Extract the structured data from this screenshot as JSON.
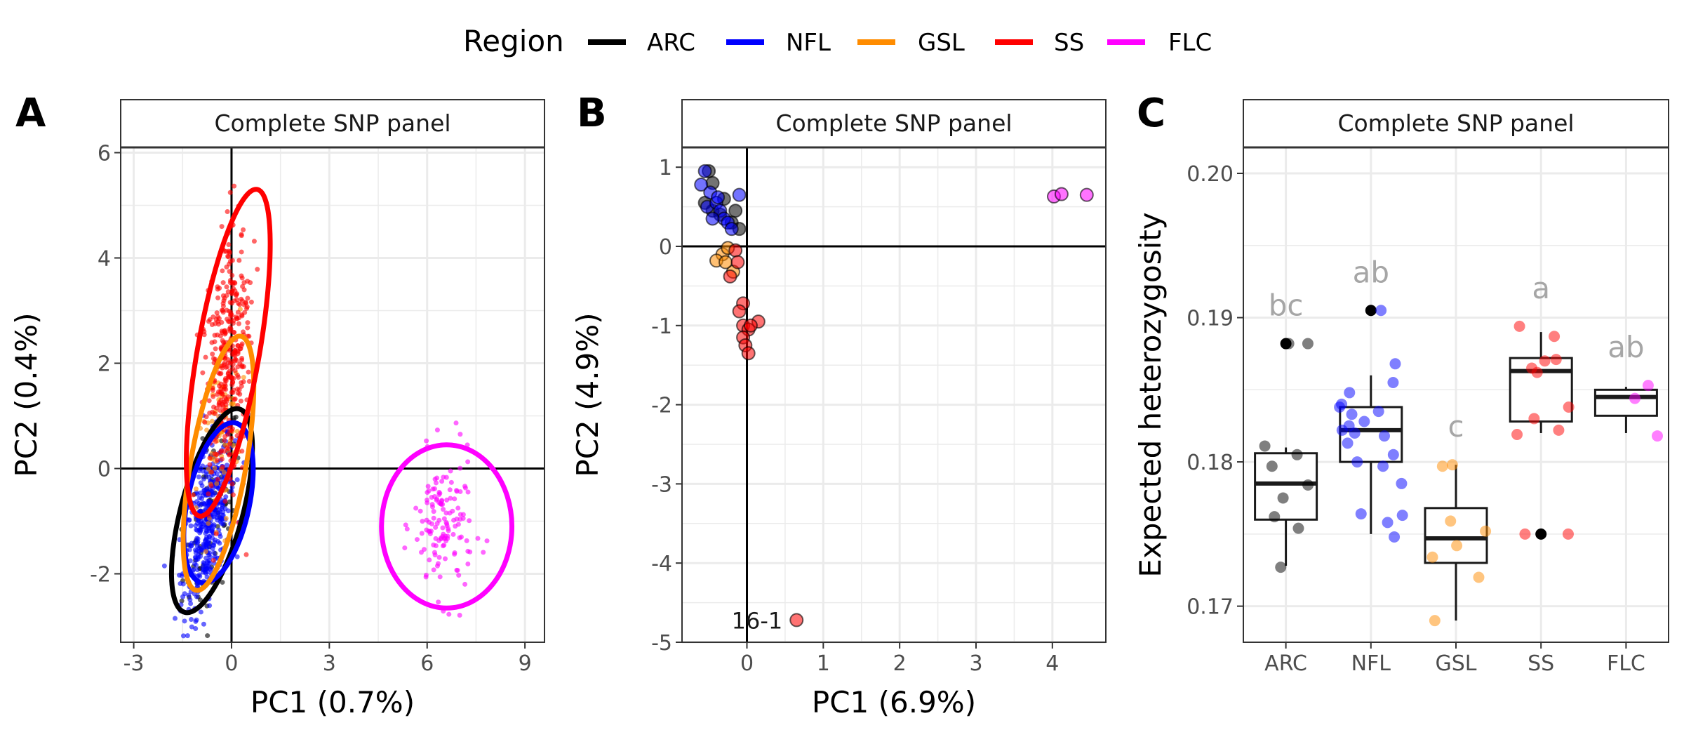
{
  "legend": {
    "title": "Region",
    "items": [
      {
        "label": "ARC",
        "color": "#000000"
      },
      {
        "label": "NFL",
        "color": "#0000ff"
      },
      {
        "label": "GSL",
        "color": "#ff8c00"
      },
      {
        "label": "SS",
        "color": "#ff0000"
      },
      {
        "label": "FLC",
        "color": "#ff00ff"
      }
    ]
  },
  "chart_data": [
    {
      "panel": "A",
      "type": "scatter",
      "strip": "Complete SNP panel",
      "xlabel": "PC1 (0.7%)",
      "ylabel": "PC2 (0.4%)",
      "xlim": [
        -3.4,
        9.6
      ],
      "ylim": [
        -3.3,
        6.1
      ],
      "xticks": [
        -3,
        0,
        3,
        6,
        9
      ],
      "yticks": [
        -2,
        0,
        2,
        4,
        6
      ],
      "grid": true,
      "reference_lines": {
        "x": 0,
        "y": 0
      },
      "clusters": [
        {
          "group": "ARC",
          "color": "#000000",
          "center": [
            -0.6,
            -1.0
          ],
          "spread": [
            0.75,
            0.85
          ],
          "n": 90
        },
        {
          "group": "NFL",
          "color": "#0000ff",
          "center": [
            -0.7,
            -1.0
          ],
          "spread": [
            0.65,
            0.75
          ],
          "n": 450
        },
        {
          "group": "GSL",
          "color": "#ff8c00",
          "center": [
            -0.4,
            0.4
          ],
          "spread": [
            0.55,
            1.0
          ],
          "n": 80
        },
        {
          "group": "SS",
          "color": "#ff0000",
          "center": [
            -0.1,
            2.1
          ],
          "spread": [
            0.55,
            1.3
          ],
          "n": 380
        },
        {
          "group": "FLC",
          "color": "#ff00ff",
          "center": [
            6.5,
            -1.1
          ],
          "spread": [
            0.75,
            0.75
          ],
          "n": 140
        }
      ],
      "ellipses": [
        {
          "group": "ARC",
          "color": "#000000",
          "center": [
            -0.6,
            -0.8
          ],
          "rx": 0.95,
          "ry": 2.0,
          "angle_deg": 15
        },
        {
          "group": "NFL",
          "color": "#0000ff",
          "center": [
            -0.4,
            -0.65
          ],
          "rx": 0.95,
          "ry": 1.55,
          "angle_deg": 12
        },
        {
          "group": "GSL",
          "color": "#ff8c00",
          "center": [
            -0.4,
            0.1
          ],
          "rx": 0.85,
          "ry": 2.45,
          "angle_deg": 10
        },
        {
          "group": "SS",
          "color": "#ff0000",
          "center": [
            -0.1,
            2.2
          ],
          "rx": 0.95,
          "ry": 3.15,
          "angle_deg": 10
        },
        {
          "group": "FLC",
          "color": "#ff00ff",
          "center": [
            6.6,
            -1.1
          ],
          "rx": 2.0,
          "ry": 1.55,
          "angle_deg": 0
        }
      ]
    },
    {
      "panel": "B",
      "type": "scatter",
      "strip": "Complete SNP panel",
      "xlabel": "PC1 (6.9%)",
      "ylabel": "PC2 (4.9%)",
      "xlim": [
        -0.85,
        4.7
      ],
      "ylim": [
        -5.0,
        1.25
      ],
      "xticks": [
        0,
        1,
        2,
        3,
        4
      ],
      "yticks": [
        -5,
        -4,
        -3,
        -2,
        -1,
        0,
        1
      ],
      "grid": true,
      "reference_lines": {
        "x": 0,
        "y": 0
      },
      "points": [
        {
          "x": -0.5,
          "y": 0.95,
          "g": "ARC"
        },
        {
          "x": -0.45,
          "y": 0.8,
          "g": "ARC"
        },
        {
          "x": -0.55,
          "y": 0.55,
          "g": "ARC"
        },
        {
          "x": -0.3,
          "y": 0.6,
          "g": "ARC"
        },
        {
          "x": -0.35,
          "y": 0.4,
          "g": "ARC"
        },
        {
          "x": -0.15,
          "y": 0.45,
          "g": "ARC"
        },
        {
          "x": -0.1,
          "y": 0.22,
          "g": "ARC"
        },
        {
          "x": -0.45,
          "y": 0.45,
          "g": "ARC"
        },
        {
          "x": -0.2,
          "y": 0.3,
          "g": "ARC"
        },
        {
          "x": -0.55,
          "y": 0.95,
          "g": "NFL"
        },
        {
          "x": -0.6,
          "y": 0.78,
          "g": "NFL"
        },
        {
          "x": -0.48,
          "y": 0.68,
          "g": "NFL"
        },
        {
          "x": -0.52,
          "y": 0.5,
          "g": "NFL"
        },
        {
          "x": -0.4,
          "y": 0.55,
          "g": "NFL"
        },
        {
          "x": -0.35,
          "y": 0.45,
          "g": "NFL"
        },
        {
          "x": -0.3,
          "y": 0.35,
          "g": "NFL"
        },
        {
          "x": -0.25,
          "y": 0.3,
          "g": "NFL"
        },
        {
          "x": -0.2,
          "y": 0.22,
          "g": "NFL"
        },
        {
          "x": -0.45,
          "y": 0.35,
          "g": "NFL"
        },
        {
          "x": -0.1,
          "y": 0.65,
          "g": "NFL"
        },
        {
          "x": -0.38,
          "y": 0.62,
          "g": "NFL"
        },
        {
          "x": -0.32,
          "y": -0.1,
          "g": "GSL"
        },
        {
          "x": -0.4,
          "y": -0.18,
          "g": "GSL"
        },
        {
          "x": -0.25,
          "y": -0.02,
          "g": "GSL"
        },
        {
          "x": -0.18,
          "y": -0.32,
          "g": "GSL"
        },
        {
          "x": -0.28,
          "y": -0.2,
          "g": "GSL"
        },
        {
          "x": -0.15,
          "y": -0.05,
          "g": "SS"
        },
        {
          "x": -0.12,
          "y": -0.2,
          "g": "SS"
        },
        {
          "x": -0.22,
          "y": -0.38,
          "g": "SS"
        },
        {
          "x": -0.05,
          "y": -0.72,
          "g": "SS"
        },
        {
          "x": -0.1,
          "y": -0.82,
          "g": "SS"
        },
        {
          "x": -0.05,
          "y": -1.0,
          "g": "SS"
        },
        {
          "x": 0.02,
          "y": -1.05,
          "g": "SS"
        },
        {
          "x": 0.15,
          "y": -0.95,
          "g": "SS"
        },
        {
          "x": 0.05,
          "y": -1.0,
          "g": "SS"
        },
        {
          "x": -0.05,
          "y": -1.15,
          "g": "SS"
        },
        {
          "x": -0.02,
          "y": -1.25,
          "g": "SS"
        },
        {
          "x": 0.02,
          "y": -1.35,
          "g": "SS"
        },
        {
          "x": 0.65,
          "y": -4.72,
          "g": "SS"
        },
        {
          "x": 4.02,
          "y": 0.63,
          "g": "FLC"
        },
        {
          "x": 4.12,
          "y": 0.66,
          "g": "FLC"
        },
        {
          "x": 4.45,
          "y": 0.65,
          "g": "FLC"
        }
      ],
      "annotations": [
        {
          "text": "16-1",
          "x": 0.65,
          "y": -4.72
        }
      ]
    },
    {
      "panel": "C",
      "type": "box",
      "strip": "Complete SNP panel",
      "xlabel": "",
      "ylabel": "Expected heterozygosity",
      "ylim": [
        0.1675,
        0.2018
      ],
      "yticks": [
        0.17,
        0.18,
        0.19,
        0.2
      ],
      "categories": [
        "ARC",
        "NFL",
        "GSL",
        "SS",
        "FLC"
      ],
      "grid": true,
      "boxes": [
        {
          "group": "ARC",
          "color": "#000000",
          "min": 0.1728,
          "q1": 0.176,
          "median": 0.1785,
          "q3": 0.1806,
          "max": 0.181,
          "letter": "bc",
          "points": [
            0.1882,
            0.1882,
            0.1811,
            0.1805,
            0.1797,
            0.1784,
            0.1775,
            0.1762,
            0.1754,
            0.1727
          ],
          "outliers": [
            0.1882
          ]
        },
        {
          "group": "NFL",
          "color": "#0000ff",
          "min": 0.175,
          "q1": 0.18,
          "median": 0.1822,
          "q3": 0.1838,
          "max": 0.186,
          "letter": "ab",
          "points": [
            0.1905,
            0.1868,
            0.1855,
            0.1848,
            0.184,
            0.1838,
            0.1835,
            0.1833,
            0.1828,
            0.1825,
            0.1822,
            0.182,
            0.1818,
            0.1813,
            0.1805,
            0.18,
            0.1797,
            0.1785,
            0.1764,
            0.1763,
            0.1758,
            0.1748
          ],
          "outliers": [
            0.1905
          ]
        },
        {
          "group": "GSL",
          "color": "#ff8c00",
          "min": 0.169,
          "q1": 0.173,
          "median": 0.1747,
          "q3": 0.1768,
          "max": 0.1798,
          "letter": "c",
          "points": [
            0.1798,
            0.1797,
            0.1759,
            0.1752,
            0.1742,
            0.1734,
            0.172,
            0.169
          ],
          "outliers": []
        },
        {
          "group": "SS",
          "color": "#ff0000",
          "min": 0.182,
          "q1": 0.1828,
          "median": 0.1863,
          "q3": 0.1872,
          "max": 0.189,
          "letter": "a",
          "points": [
            0.1894,
            0.1887,
            0.1871,
            0.187,
            0.1865,
            0.1862,
            0.1838,
            0.183,
            0.1822,
            0.1819,
            0.175,
            0.175
          ],
          "outliers": [
            0.175
          ]
        },
        {
          "group": "FLC",
          "color": "#ff00ff",
          "min": 0.182,
          "q1": 0.1832,
          "median": 0.1845,
          "q3": 0.185,
          "max": 0.1852,
          "letter": "ab",
          "points": [
            0.1853,
            0.1844,
            0.1818
          ],
          "outliers": []
        }
      ]
    }
  ],
  "panels": {
    "A": "A",
    "B": "B",
    "C": "C"
  }
}
